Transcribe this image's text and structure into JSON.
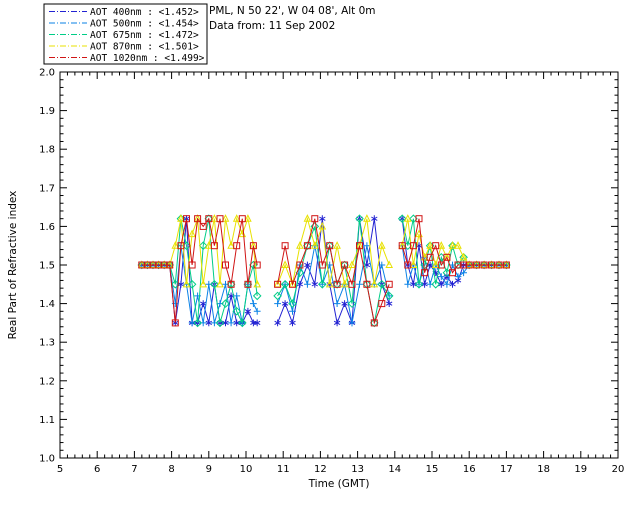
{
  "header": {
    "site_line": "PML, N 50 22', W 04 08', Alt 0m",
    "date_line": "Data from: 11 Sep 2002"
  },
  "chart_data": {
    "type": "line",
    "title": "",
    "xlabel": "Time (GMT)",
    "ylabel": "Real Part of Refractive index",
    "xlim": [
      5,
      20
    ],
    "ylim": [
      1.0,
      2.0
    ],
    "grid": false,
    "legend_position": "top-left-outside",
    "xticks": [
      5,
      6,
      7,
      8,
      9,
      10,
      11,
      12,
      13,
      14,
      15,
      16,
      17,
      18,
      19,
      20
    ],
    "xtick_labels": [
      "5",
      "6",
      "7",
      "8",
      "9",
      "10",
      "11",
      "12",
      "13",
      "14",
      "15",
      "16",
      "17",
      "18",
      "19",
      "20"
    ],
    "yticks": [
      1.0,
      1.1,
      1.2,
      1.3,
      1.4,
      1.5,
      1.6,
      1.7,
      1.8,
      1.9,
      2.0
    ],
    "ytick_labels": [
      "1.0",
      "1.1",
      "1.2",
      "1.3",
      "1.4",
      "1.5",
      "1.6",
      "1.7",
      "1.8",
      "1.9",
      "2.0"
    ],
    "series": [
      {
        "key": "400",
        "wavelength": "400nm",
        "mean": "1.452",
        "legend_label": "AOT  400nm : <1.452>",
        "color": "#2222d2",
        "marker": "asterisk",
        "dash": "6,2,1,2"
      },
      {
        "key": "500",
        "wavelength": "500nm",
        "mean": "1.454",
        "legend_label": "AOT  500nm : <1.454>",
        "color": "#0a82e6",
        "marker": "plus",
        "dash": "6,2,1,2"
      },
      {
        "key": "675",
        "wavelength": "675nm",
        "mean": "1.472",
        "legend_label": "AOT  675nm : <1.472>",
        "color": "#00cd87",
        "marker": "diamond",
        "dash": "6,2,1,2"
      },
      {
        "key": "870",
        "wavelength": "870nm",
        "mean": "1.501",
        "legend_label": "AOT  870nm : <1.501>",
        "color": "#e8e100",
        "marker": "triangle",
        "dash": "6,2,1,2"
      },
      {
        "key": "1020",
        "wavelength": "1020nm",
        "mean": "1.499",
        "legend_label": "AOT 1020nm : <1.499>",
        "color": "#d01414",
        "marker": "square",
        "dash": "6,2,1,2"
      }
    ],
    "segments": [
      {
        "x": [
          7.2,
          7.35,
          7.5,
          7.65,
          7.8,
          7.95,
          8.1,
          8.25,
          8.4,
          8.55,
          8.7,
          8.85,
          9.0,
          9.15,
          9.3,
          9.45,
          9.6,
          9.75,
          9.9,
          10.05,
          10.2,
          10.3
        ],
        "y": {
          "400": [
            1.5,
            1.5,
            1.5,
            1.5,
            1.5,
            1.5,
            1.35,
            1.45,
            1.62,
            1.35,
            1.35,
            1.4,
            1.35,
            1.45,
            1.35,
            1.35,
            1.42,
            1.35,
            1.35,
            1.38,
            1.35,
            1.35
          ],
          "500": [
            1.5,
            1.5,
            1.5,
            1.5,
            1.5,
            1.5,
            1.4,
            1.55,
            1.45,
            1.35,
            1.42,
            1.35,
            1.45,
            1.35,
            1.4,
            1.45,
            1.35,
            1.42,
            1.35,
            1.45,
            1.4,
            1.38
          ],
          "675": [
            1.5,
            1.5,
            1.5,
            1.5,
            1.5,
            1.5,
            1.45,
            1.62,
            1.55,
            1.45,
            1.35,
            1.55,
            1.62,
            1.45,
            1.35,
            1.4,
            1.45,
            1.38,
            1.35,
            1.45,
            1.5,
            1.42
          ],
          "870": [
            1.5,
            1.5,
            1.5,
            1.5,
            1.5,
            1.5,
            1.55,
            1.62,
            1.45,
            1.58,
            1.62,
            1.45,
            1.55,
            1.62,
            1.45,
            1.62,
            1.55,
            1.62,
            1.58,
            1.62,
            1.55,
            1.45
          ],
          "1020": [
            1.5,
            1.5,
            1.5,
            1.5,
            1.5,
            1.5,
            1.35,
            1.55,
            1.62,
            1.5,
            1.62,
            1.6,
            1.62,
            1.55,
            1.62,
            1.5,
            1.45,
            1.55,
            1.62,
            1.45,
            1.55,
            1.5
          ]
        }
      },
      {
        "x": [
          10.85,
          11.05,
          11.25,
          11.45,
          11.65,
          11.85,
          12.05,
          12.25,
          12.45,
          12.65,
          12.85,
          13.05,
          13.25,
          13.45,
          13.65,
          13.85
        ],
        "y": {
          "400": [
            1.35,
            1.4,
            1.35,
            1.45,
            1.5,
            1.45,
            1.62,
            1.45,
            1.35,
            1.4,
            1.35,
            1.62,
            1.5,
            1.62,
            1.45,
            1.4
          ],
          "500": [
            1.4,
            1.45,
            1.38,
            1.5,
            1.45,
            1.55,
            1.45,
            1.5,
            1.4,
            1.45,
            1.35,
            1.45,
            1.55,
            1.45,
            1.5,
            1.42
          ],
          "675": [
            1.42,
            1.45,
            1.4,
            1.48,
            1.55,
            1.6,
            1.45,
            1.55,
            1.45,
            1.5,
            1.4,
            1.62,
            1.45,
            1.35,
            1.45,
            1.42
          ],
          "870": [
            1.45,
            1.5,
            1.45,
            1.55,
            1.62,
            1.55,
            1.6,
            1.45,
            1.55,
            1.45,
            1.5,
            1.55,
            1.62,
            1.45,
            1.55,
            1.5
          ],
          "1020": [
            1.45,
            1.55,
            1.45,
            1.5,
            1.55,
            1.62,
            1.5,
            1.55,
            1.45,
            1.5,
            1.45,
            1.55,
            1.45,
            1.35,
            1.4,
            1.45
          ]
        }
      },
      {
        "x": [
          14.2,
          14.35,
          14.5,
          14.65,
          14.8,
          14.95,
          15.1,
          15.25,
          15.4,
          15.55,
          15.7,
          15.85,
          16.0,
          16.2,
          16.4,
          16.6,
          16.8,
          17.0
        ],
        "y": {
          "400": [
            1.62,
            1.5,
            1.45,
            1.55,
            1.45,
            1.5,
            1.48,
            1.45,
            1.47,
            1.45,
            1.46,
            1.5,
            1.5,
            1.5,
            1.5,
            1.5,
            1.5,
            1.5
          ],
          "500": [
            1.55,
            1.45,
            1.5,
            1.45,
            1.52,
            1.45,
            1.5,
            1.47,
            1.45,
            1.5,
            1.47,
            1.48,
            1.5,
            1.5,
            1.5,
            1.5,
            1.5,
            1.5
          ],
          "675": [
            1.62,
            1.55,
            1.62,
            1.45,
            1.5,
            1.55,
            1.45,
            1.52,
            1.48,
            1.55,
            1.5,
            1.52,
            1.5,
            1.5,
            1.5,
            1.5,
            1.5,
            1.5
          ],
          "870": [
            1.55,
            1.62,
            1.5,
            1.58,
            1.52,
            1.55,
            1.5,
            1.55,
            1.52,
            1.55,
            1.55,
            1.52,
            1.5,
            1.5,
            1.5,
            1.5,
            1.5,
            1.5
          ],
          "1020": [
            1.55,
            1.5,
            1.55,
            1.62,
            1.48,
            1.52,
            1.55,
            1.5,
            1.52,
            1.48,
            1.5,
            1.5,
            1.5,
            1.5,
            1.5,
            1.5,
            1.5,
            1.5
          ]
        }
      }
    ]
  }
}
